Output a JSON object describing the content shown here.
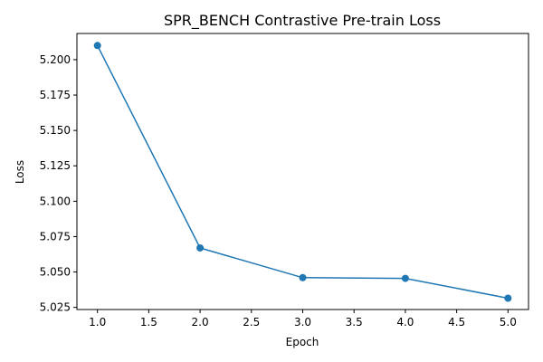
{
  "chart_data": {
    "type": "line",
    "title": "SPR_BENCH Contrastive Pre-train Loss",
    "xlabel": "Epoch",
    "ylabel": "Loss",
    "xlim": [
      0.8,
      5.2
    ],
    "ylim": [
      5.0235,
      5.2185
    ],
    "xticks": [
      1.0,
      1.5,
      2.0,
      2.5,
      3.0,
      3.5,
      4.0,
      4.5,
      5.0
    ],
    "xtick_labels": [
      "1.0",
      "1.5",
      "2.0",
      "2.5",
      "3.0",
      "3.5",
      "4.0",
      "4.5",
      "5.0"
    ],
    "yticks": [
      5.025,
      5.05,
      5.075,
      5.1,
      5.125,
      5.15,
      5.175,
      5.2
    ],
    "ytick_labels": [
      "5.025",
      "5.050",
      "5.075",
      "5.100",
      "5.125",
      "5.150",
      "5.175",
      "5.200"
    ],
    "grid": false,
    "series": [
      {
        "color": "#1f77b4",
        "marker": "circle",
        "x": [
          1,
          2,
          3,
          4,
          5
        ],
        "y": [
          5.21,
          5.067,
          5.046,
          5.0455,
          5.0315
        ]
      }
    ]
  }
}
